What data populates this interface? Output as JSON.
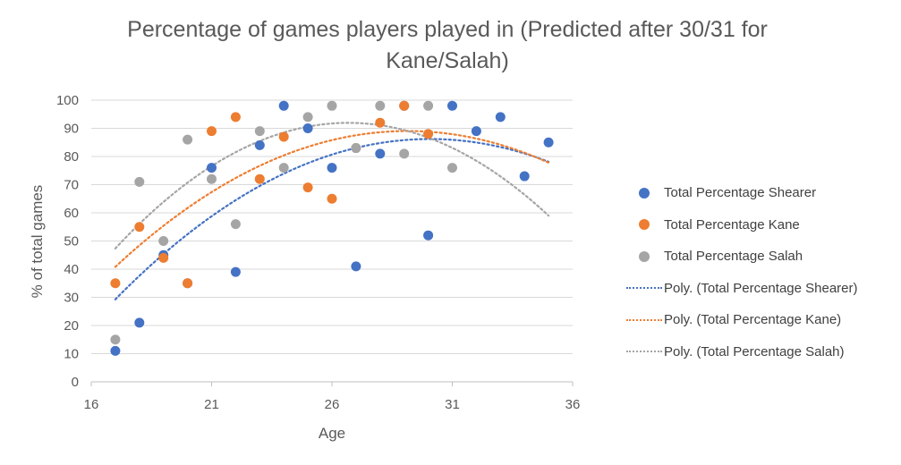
{
  "chart_data": {
    "type": "scatter",
    "title": "Percentage of games players played in (Predicted after 30/31 for Kane/Salah)",
    "title_lines": [
      "Percentage of games players played in (Predicted after 30/31 for",
      "Kane/Salah)"
    ],
    "xlabel": "Age",
    "ylabel": "% of total games",
    "xlim": [
      16,
      36
    ],
    "ylim": [
      0,
      100
    ],
    "xticks": [
      16,
      21,
      26,
      31,
      36
    ],
    "yticks": [
      0,
      10,
      20,
      30,
      40,
      50,
      60,
      70,
      80,
      90,
      100
    ],
    "grid": "horizontal",
    "legend_position": "right",
    "series": [
      {
        "name": "Total Percentage Shearer",
        "color": "#4472C4",
        "points": [
          [
            17,
            11
          ],
          [
            18,
            21
          ],
          [
            19,
            45
          ],
          [
            20,
            35
          ],
          [
            21,
            76
          ],
          [
            22,
            39
          ],
          [
            23,
            84
          ],
          [
            24,
            98
          ],
          [
            25,
            90
          ],
          [
            26,
            76
          ],
          [
            27,
            41
          ],
          [
            28,
            81
          ],
          [
            29,
            98
          ],
          [
            30,
            52
          ],
          [
            31,
            98
          ],
          [
            32,
            89
          ],
          [
            33,
            94
          ],
          [
            34,
            73
          ],
          [
            35,
            85
          ]
        ]
      },
      {
        "name": "Total Percentage Kane",
        "color": "#ED7D31",
        "points": [
          [
            17,
            35
          ],
          [
            18,
            55
          ],
          [
            19,
            44
          ],
          [
            20,
            35
          ],
          [
            21,
            89
          ],
          [
            22,
            94
          ],
          [
            23,
            72
          ],
          [
            24,
            87
          ],
          [
            25,
            69
          ],
          [
            26,
            65
          ],
          [
            27,
            83
          ],
          [
            28,
            92
          ],
          [
            29,
            98
          ],
          [
            30,
            88
          ]
        ]
      },
      {
        "name": "Total Percentage Salah",
        "color": "#A5A5A5",
        "points": [
          [
            17,
            15
          ],
          [
            18,
            71
          ],
          [
            19,
            50
          ],
          [
            20,
            86
          ],
          [
            21,
            72
          ],
          [
            22,
            56
          ],
          [
            23,
            89
          ],
          [
            24,
            76
          ],
          [
            25,
            94
          ],
          [
            26,
            98
          ],
          [
            27,
            83
          ],
          [
            28,
            98
          ],
          [
            29,
            81
          ],
          [
            30,
            98
          ],
          [
            31,
            76
          ]
        ]
      }
    ],
    "trendlines": [
      {
        "name": "Poly. (Total Percentage Shearer)",
        "color": "#4472C4",
        "type": "polynomial",
        "x_range": [
          17,
          35
        ],
        "coefficients": [
          -0.333,
          20.03,
          -215.0
        ]
      },
      {
        "name": "Poly. (Total Percentage Kane)",
        "color": "#ED7D31",
        "type": "polynomial",
        "x_range": [
          17,
          35
        ],
        "coefficients": [
          -0.327,
          19.06,
          -188.7
        ]
      },
      {
        "name": "Poly. (Total Percentage Salah)",
        "color": "#A5A5A5",
        "type": "polynomial",
        "x_range": [
          17,
          35
        ],
        "coefficients": [
          -0.476,
          25.4,
          -246.9
        ]
      }
    ]
  },
  "legend": {
    "items": [
      {
        "label": "Total Percentage Shearer",
        "kind": "marker",
        "color": "#4472C4"
      },
      {
        "label": "Total Percentage Kane",
        "kind": "marker",
        "color": "#ED7D31"
      },
      {
        "label": "Total Percentage Salah",
        "kind": "marker",
        "color": "#A5A5A5"
      },
      {
        "label": "Poly. (Total Percentage Shearer)",
        "kind": "line",
        "color": "#4472C4"
      },
      {
        "label": "Poly. (Total Percentage Kane)",
        "kind": "line",
        "color": "#ED7D31"
      },
      {
        "label": "Poly. (Total Percentage Salah)",
        "kind": "line",
        "color": "#A5A5A5"
      }
    ]
  }
}
